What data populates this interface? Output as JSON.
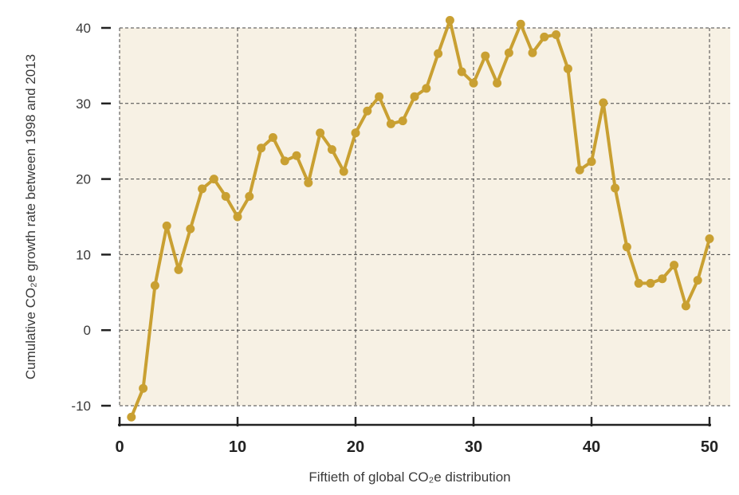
{
  "chart_data": {
    "type": "line",
    "title": "",
    "xlabel": "Fiftieth of global CO₂e distribution",
    "ylabel": "Cumulative CO₂e growth rate between 1998 and 2013",
    "xlim": [
      0,
      51
    ],
    "ylim": [
      -10,
      40
    ],
    "x_ticks": [
      0,
      10,
      20,
      30,
      40,
      50
    ],
    "y_ticks": [
      -10,
      0,
      10,
      20,
      30,
      40
    ],
    "grid": true,
    "colors": {
      "line": "#c9a032",
      "background": "#f7f1e4",
      "grid": "#444444"
    },
    "series": [
      {
        "x": [
          1,
          2,
          3,
          4,
          5,
          6,
          7,
          8,
          9,
          10,
          11,
          12,
          13,
          14,
          15,
          16,
          17,
          18,
          19,
          20,
          21,
          22,
          23,
          24,
          25,
          26,
          27,
          28,
          29,
          30,
          31,
          32,
          33,
          34,
          35,
          36,
          37,
          38,
          39,
          40,
          41,
          42,
          43,
          44,
          45,
          46,
          47,
          48,
          49,
          50
        ],
        "values": [
          -11.5,
          -7.7,
          5.9,
          13.8,
          8,
          13.4,
          18.7,
          20,
          17.7,
          15,
          17.7,
          24.1,
          25.5,
          22.4,
          23.1,
          19.5,
          26.1,
          23.9,
          21,
          26.1,
          29,
          30.9,
          27.3,
          27.7,
          30.9,
          32,
          36.6,
          41,
          34.2,
          32.7,
          36.3,
          32.7,
          36.7,
          40.5,
          36.7,
          38.8,
          39.1,
          34.6,
          21.2,
          22.3,
          30.1,
          18.8,
          11,
          6.2,
          6.2,
          6.8,
          8.6,
          3.2,
          6.6,
          12.1
        ]
      }
    ]
  }
}
